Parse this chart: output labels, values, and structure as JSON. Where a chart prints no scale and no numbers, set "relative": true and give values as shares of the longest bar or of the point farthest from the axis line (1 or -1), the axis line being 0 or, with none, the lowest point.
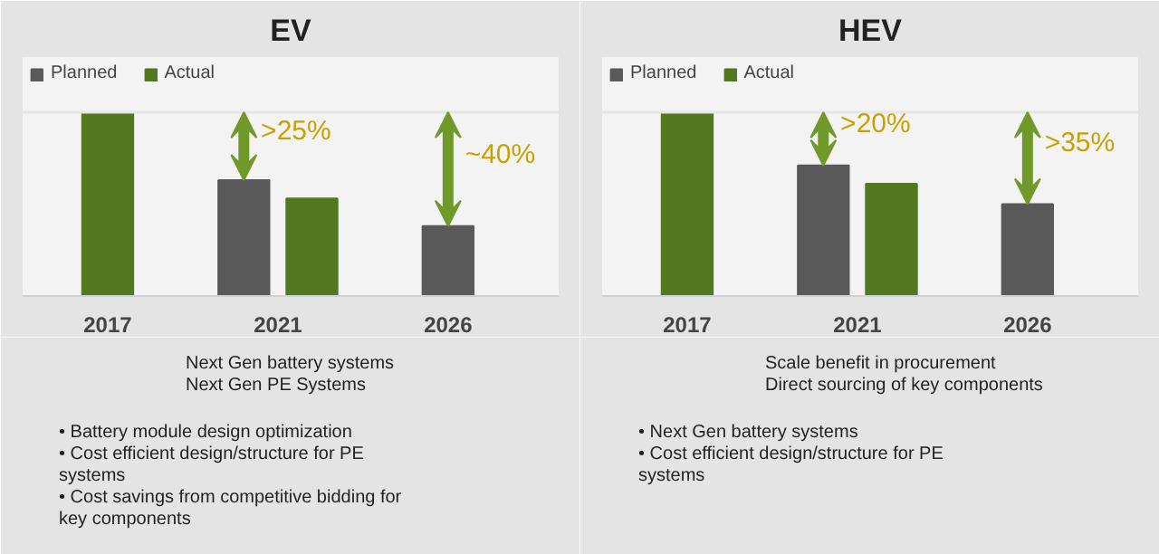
{
  "chart_data": [
    {
      "type": "bar",
      "title": "EV",
      "categories": [
        "2017",
        "2021",
        "2026"
      ],
      "relative": true,
      "legend": "top left",
      "series": [
        {
          "name": "Planned",
          "color": "#5a5a5a",
          "values": [
            null,
            0.63,
            0.38
          ]
        },
        {
          "name": "Actual",
          "color": "#52791f",
          "values": [
            1,
            0.53,
            null
          ]
        }
      ],
      "ref_lines": [
        {
          "axis": "y",
          "value": 1,
          "color": "#e6e6e6"
        }
      ],
      "annotations": [
        ">25%",
        "~40%",
        "Next Gen battery systems\nNext Gen PE Systems",
        "• Battery module design optimization\n• Cost efficient design/structure for PE systems\n• Cost savings from competitive bidding for key components"
      ]
    },
    {
      "type": "bar",
      "title": "HEV",
      "categories": [
        "2017",
        "2021",
        "2026"
      ],
      "relative": true,
      "legend": "top left",
      "series": [
        {
          "name": "Planned",
          "color": "#5a5a5a",
          "values": [
            null,
            0.71,
            0.5
          ]
        },
        {
          "name": "Actual",
          "color": "#52791f",
          "values": [
            1,
            0.61,
            null
          ]
        }
      ],
      "ref_lines": [
        {
          "axis": "y",
          "value": 1,
          "color": "#e6e6e6"
        }
      ],
      "annotations": [
        ">20%",
        ">35%",
        "Scale benefit in procurement\nDirect sourcing of key components",
        "• Next Gen battery systems\n• Cost efficient design/structure for PE systems"
      ]
    }
  ]
}
